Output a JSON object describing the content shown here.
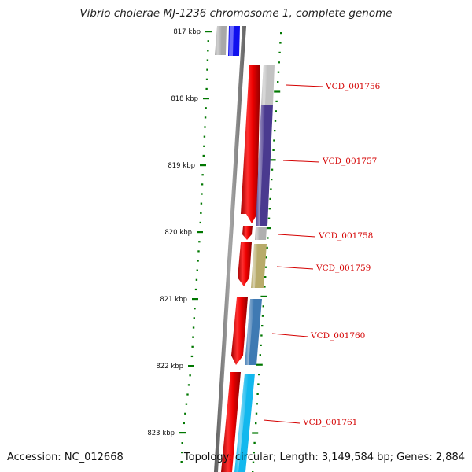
{
  "title": "Vibrio cholerae MJ-1236 chromosome 1, complete genome",
  "footer": {
    "accession": "Accession: NC_012668",
    "summary": "Topology: circular; Length: 3,149,584 bp; Genes: 2,884"
  },
  "ruler": {
    "ticks": [
      "817 kbp",
      "818 kbp",
      "819 kbp",
      "820 kbp",
      "821 kbp",
      "822 kbp",
      "823 kbp"
    ],
    "tick_color": "#007700"
  },
  "genes": [
    {
      "label": "VCD_001756",
      "color": "#b8b8b8"
    },
    {
      "label": "VCD_001757",
      "color": "#4a3a8f"
    },
    {
      "label": "VCD_001758",
      "color": "#b0b0b0"
    },
    {
      "label": "VCD_001759",
      "color": "#b8ab6a"
    },
    {
      "label": "VCD_001760",
      "color": "#3f7ab3"
    },
    {
      "label": "VCD_001761",
      "color": "#12b8ee"
    }
  ],
  "colors": {
    "cds_strand": "#ee0000",
    "backbone": "#8a8a8a",
    "top_block": "#1010ee",
    "label": "#d40000"
  }
}
